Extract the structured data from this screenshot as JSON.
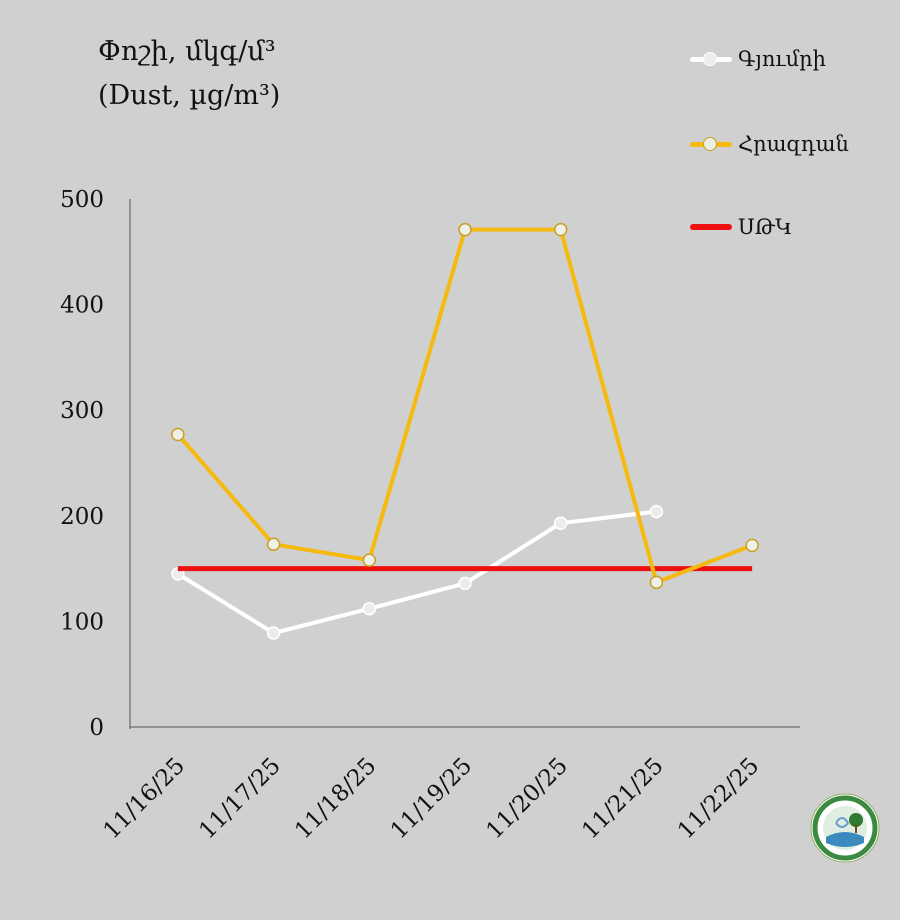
{
  "chart_data": {
    "type": "line",
    "title": "Փոշի, մկգ/մ³",
    "subtitle": "(Dust, µg/m³)",
    "xlabel": "",
    "ylabel": "",
    "categories": [
      "11/16/25",
      "11/17/25",
      "11/18/25",
      "11/19/25",
      "11/20/25",
      "11/21/25",
      "11/22/25"
    ],
    "ylim": [
      0,
      500
    ],
    "yticks": [
      "0",
      "100",
      "200",
      "300",
      "400",
      "500"
    ],
    "grid": false,
    "legend_position": "top-right",
    "series": [
      {
        "name": "Գյումրի",
        "color": "#ffffff",
        "marker": "circle",
        "values": [
          145,
          89,
          112,
          136,
          193,
          204,
          null
        ]
      },
      {
        "name": "Հրազդան",
        "color": "#f5b90f",
        "marker": "circle",
        "values": [
          277,
          173,
          158,
          471,
          471,
          137,
          172
        ]
      },
      {
        "name": "ՍԹԿ",
        "color": "#ee1010",
        "marker": "none",
        "values": [
          150,
          150,
          150,
          150,
          150,
          150,
          150
        ]
      }
    ]
  }
}
